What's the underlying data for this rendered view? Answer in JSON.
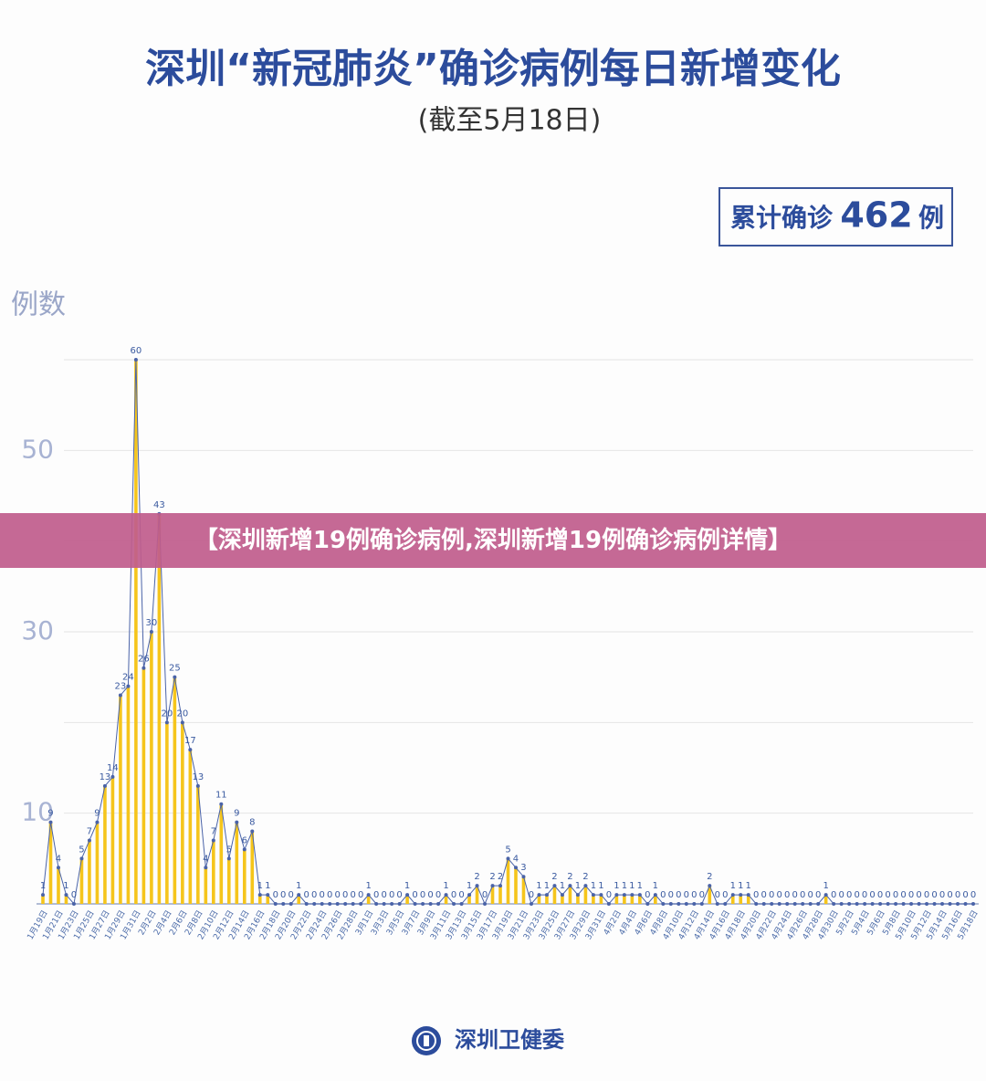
{
  "chart_data": {
    "type": "bar_line",
    "title": "深圳“新冠肺炎”确诊病例每日新增变化",
    "subtitle": "(截至5月18日)",
    "total": {
      "label": "累计确诊",
      "value": 462,
      "unit": "例"
    },
    "y_label": "例数",
    "categories": [
      "1月19日",
      null,
      "1月21日",
      null,
      "1月23日",
      null,
      "1月25日",
      null,
      "1月27日",
      null,
      "1月29日",
      null,
      "1月31日",
      null,
      "2月2日",
      null,
      "2月4日",
      null,
      "2月6日",
      null,
      "2月8日",
      null,
      "2月10日",
      null,
      "2月12日",
      null,
      "2月14日",
      null,
      "2月16日",
      null,
      "2月18日",
      null,
      "2月20日",
      null,
      "2月22日",
      null,
      "2月24日",
      null,
      "2月26日",
      null,
      "2月28日",
      null,
      "3月1日",
      null,
      "3月3日",
      null,
      "3月5日",
      null,
      "3月7日",
      null,
      "3月9日",
      null,
      "3月11日",
      null,
      "3月13日",
      null,
      "3月15日",
      null,
      "3月17日",
      null,
      "3月19日",
      null,
      "3月21日",
      null,
      "3月23日",
      null,
      "3月25日",
      null,
      "3月27日",
      null,
      "3月29日",
      null,
      "3月31日",
      null,
      "4月2日",
      null,
      "4月4日",
      null,
      "4月6日",
      null,
      "4月8日",
      null,
      "4月10日",
      null,
      "4月12日",
      null,
      "4月14日",
      null,
      "4月16日",
      null,
      "4月18日",
      null,
      "4月20日",
      null,
      "4月22日",
      null,
      "4月24日",
      null,
      "4月26日",
      null,
      "4月28日",
      null,
      "4月30日",
      null,
      "5月2日",
      null,
      "5月4日",
      null,
      "5月6日",
      null,
      "5月8日",
      null,
      "5月10日",
      null,
      "5月12日",
      null,
      "5月14日",
      null,
      "5月16日",
      null,
      "5月18日"
    ],
    "values": [
      1,
      9,
      4,
      1,
      0,
      5,
      7,
      9,
      13,
      14,
      23,
      24,
      60,
      26,
      30,
      43,
      20,
      25,
      20,
      17,
      13,
      4,
      7,
      11,
      5,
      9,
      6,
      8,
      1,
      1,
      0,
      0,
      0,
      1,
      0,
      0,
      0,
      0,
      0,
      0,
      0,
      0,
      1,
      0,
      0,
      0,
      0,
      1,
      0,
      0,
      0,
      0,
      1,
      0,
      0,
      1,
      2,
      0,
      2,
      2,
      5,
      4,
      3,
      0,
      1,
      1,
      2,
      1,
      2,
      1,
      2,
      1,
      1,
      0,
      1,
      1,
      1,
      1,
      0,
      1,
      0,
      0,
      0,
      0,
      0,
      0,
      2,
      0,
      0,
      1,
      1,
      1,
      0,
      0,
      0,
      0,
      0,
      0,
      0,
      0,
      0,
      1,
      0,
      0,
      0,
      0,
      0,
      0,
      0,
      0,
      0,
      0,
      0,
      0,
      0,
      0,
      0,
      0,
      0,
      0,
      0
    ],
    "color": "#f5c51c",
    "line_color": "#4a63a8",
    "ylim": [
      0,
      60
    ],
    "yticks": [
      10,
      30,
      50
    ],
    "grid_ticks": [
      0,
      10,
      20,
      30,
      40,
      50,
      60
    ],
    "grid": true,
    "banner": "【深圳新增19例确诊病例,深圳新增19例确诊病例详情】",
    "source": "深圳卫健委"
  }
}
